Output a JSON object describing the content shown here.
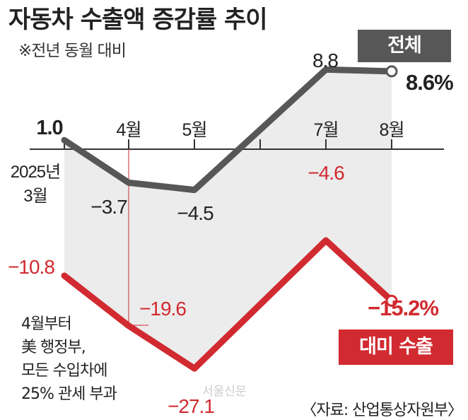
{
  "title": "자동차 수출액 증감률 추이",
  "subtitle": "※전년 동월 대비",
  "colors": {
    "total": "#575757",
    "us": "#d12a30",
    "shade": "#ececec",
    "axis": "#333333"
  },
  "chart_data": {
    "type": "line",
    "x_labels": [
      "2025년\n3월",
      "4월",
      "5월",
      "",
      "7월",
      "8월"
    ],
    "first_label_lines": [
      "2025년",
      "3월"
    ],
    "series": [
      {
        "name": "전체",
        "values": [
          1.0,
          -3.7,
          -4.5,
          null,
          8.8,
          8.6
        ],
        "labels": [
          "1.0",
          "-3.7",
          "-4.5",
          null,
          "8.8",
          "8.6%"
        ]
      },
      {
        "name": "대미 수출",
        "values": [
          -10.8,
          -19.6,
          -27.1,
          null,
          -4.6,
          -15.2
        ],
        "labels": [
          "-10.8",
          "-19.6",
          "-27.1",
          null,
          "-4.6",
          "-15.2%"
        ]
      }
    ],
    "annotation": {
      "lines": [
        "4월부터",
        "美 행정부,",
        "모든 수입차에",
        "25% 관세 부과"
      ]
    },
    "source": "〈자료: 산업통상자원부〉"
  },
  "badges": {
    "total": "전체",
    "us": "대미 수출"
  },
  "watermark": "서울신문"
}
